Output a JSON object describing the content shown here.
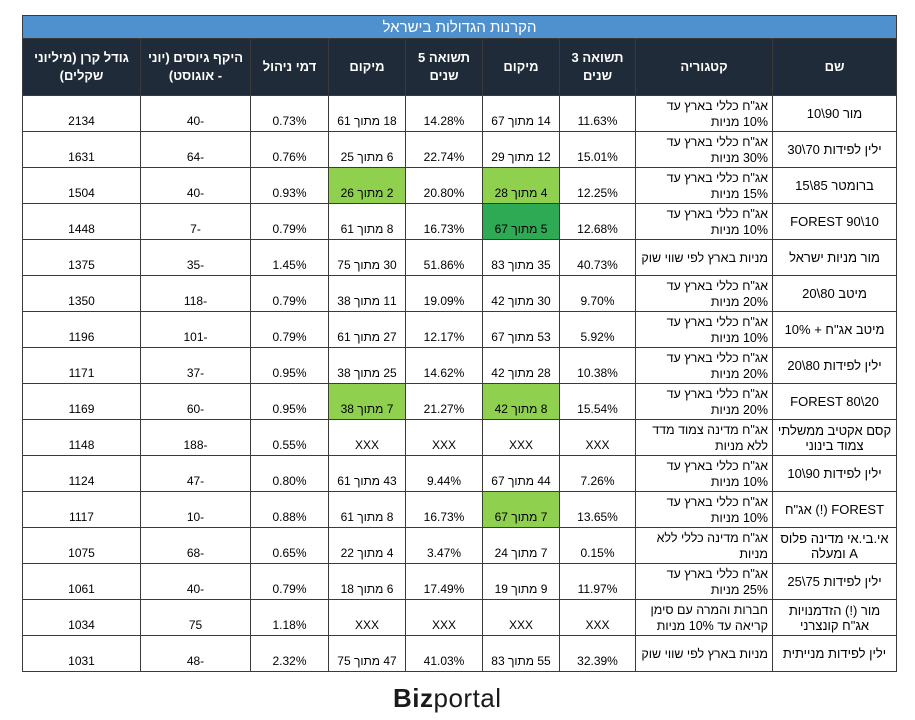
{
  "table": {
    "title": "הקרנות הגדולות בישראל",
    "headers": [
      "שם",
      "קטגוריה",
      "תשואה 3 שנים",
      "מיקום",
      "תשואה 5 שנים",
      "מיקום",
      "דמי ניהול",
      "היקף גיוסים (יוני - אוגוסט)",
      "גודל קרן (מיליוני שקלים)"
    ],
    "rows": [
      {
        "name": "מור 90\\10",
        "cat": "אג\"ח כללי בארץ עד 10% מניות",
        "r3": "11.63%",
        "rank3": "14 מתוך 67",
        "r5": "14.28%",
        "rank5": "18 מתוך 61",
        "fee": "0.73%",
        "flow": "-40",
        "size": "2134"
      },
      {
        "name": "ילין לפידות 70\\30",
        "cat": "אג\"ח כללי בארץ עד 30% מניות",
        "r3": "15.01%",
        "rank3": "12 מתוך 29",
        "r5": "22.74%",
        "rank5": "6 מתוך 25",
        "fee": "0.76%",
        "flow": "-64",
        "size": "1631"
      },
      {
        "name": "ברומטר 85\\15",
        "cat": "אג\"ח כללי בארץ עד 15% מניות",
        "r3": "12.25%",
        "rank3": "4 מתוך 28",
        "r5": "20.80%",
        "rank5": "2 מתוך 26",
        "fee": "0.93%",
        "flow": "-40",
        "size": "1504"
      },
      {
        "name": "FOREST 90\\10",
        "cat": "אג\"ח כללי בארץ עד 10% מניות",
        "r3": "12.68%",
        "rank3": "5 מתוך 67",
        "r5": "16.73%",
        "rank5": "8 מתוך 61",
        "fee": "0.79%",
        "flow": "-7",
        "size": "1448"
      },
      {
        "name": "מור מניות ישראל",
        "cat": "מניות בארץ לפי שווי שוק",
        "r3": "40.73%",
        "rank3": "35 מתוך 83",
        "r5": "51.86%",
        "rank5": "30 מתוך 75",
        "fee": "1.45%",
        "flow": "-35",
        "size": "1375"
      },
      {
        "name": "מיטב 80\\20",
        "cat": "אג\"ח כללי בארץ עד 20% מניות",
        "r3": "9.70%",
        "rank3": "30 מתוך 42",
        "r5": "19.09%",
        "rank5": "11 מתוך 38",
        "fee": "0.79%",
        "flow": "-118",
        "size": "1350"
      },
      {
        "name": "מיטב אג\"ח + 10%",
        "cat": "אג\"ח כללי  בארץ עד 10% מניות",
        "r3": "5.92%",
        "rank3": "53 מתוך 67",
        "r5": "12.17%",
        "rank5": "27 מתוך 61",
        "fee": "0.79%",
        "flow": "-101",
        "size": "1196"
      },
      {
        "name": "ילין לפידות 80\\20",
        "cat": "אג\"ח כללי בארץ עד 20% מניות",
        "r3": "10.38%",
        "rank3": "28 מתוך 42",
        "r5": "14.62%",
        "rank5": "25 מתוך 38",
        "fee": "0.95%",
        "flow": "-37",
        "size": "1171"
      },
      {
        "name": "FOREST 80\\20",
        "cat": "אג\"ח כללי בארץ עד 20% מניות",
        "r3": "15.54%",
        "rank3": "8 מתוך 42",
        "r5": "21.27%",
        "rank5": "7 מתוך 38",
        "fee": "0.95%",
        "flow": "-60",
        "size": "1169"
      },
      {
        "name": "קסם אקטיב ממשלתי צמוד בינוני",
        "cat": "אג\"ח מדינה צמוד מדד ללא מניות",
        "r3": "XXX",
        "rank3": "XXX",
        "r5": "XXX",
        "rank5": "XXX",
        "fee": "0.55%",
        "flow": "-188",
        "size": "1148"
      },
      {
        "name": "ילין לפידות 90\\10",
        "cat": "אג\"ח כללי בארץ עד 10% מניות",
        "r3": "7.26%",
        "rank3": "44 מתוך 67",
        "r5": "9.44%",
        "rank5": "43 מתוך 61",
        "fee": "0.80%",
        "flow": "-47",
        "size": "1124"
      },
      {
        "name": "FOREST (!) אג\"ח",
        "cat": "אג\"ח כללי בארץ עד 10% מניות",
        "r3": "13.65%",
        "rank3": "7 מתוך 67",
        "r5": "16.73%",
        "rank5": "8 מתוך 61",
        "fee": "0.88%",
        "flow": "-10",
        "size": "1117"
      },
      {
        "name": "אי.בי.אי מדינה פלוס A ומעלה",
        "cat": "אג\"ח מדינה כללי ללא מניות",
        "r3": "0.15%",
        "rank3": "7 מתוך 24",
        "r5": "3.47%",
        "rank5": "4 מתוך 22",
        "fee": "0.65%",
        "flow": "-68",
        "size": "1075"
      },
      {
        "name": "ילין לפידות 75\\25",
        "cat": "אג\"ח כללי בארץ עד 25% מניות",
        "r3": "11.97%",
        "rank3": "9 מתוך 19",
        "r5": "17.49%",
        "rank5": "6 מתוך 18",
        "fee": "0.79%",
        "flow": "-40",
        "size": "1061"
      },
      {
        "name": "מור (!) הזדמנויות אג\"ח קונצרני",
        "cat": "חברות והמרה עם סימן קריאה עד 10% מניות",
        "r3": "XXX",
        "rank3": "XXX",
        "r5": "XXX",
        "rank5": "XXX",
        "fee": "1.18%",
        "flow": "75",
        "size": "1034"
      },
      {
        "name": "ילין לפידות מנייתית",
        "cat": "מניות בארץ לפי שווי שוק",
        "r3": "32.39%",
        "rank3": "55 מתוך 83",
        "r5": "41.03%",
        "rank5": "47 מתוך 75",
        "fee": "2.32%",
        "flow": "-48",
        "size": "1031"
      }
    ],
    "highlights": {
      "rank5_light_green_rows": [
        2,
        8
      ],
      "rank3_light_green_rows": [
        2,
        8,
        11
      ],
      "rank3_dark_green_rows": [
        3
      ],
      "light_green": "#8fd14f",
      "dark_green": "#2eaa54"
    },
    "title_bar_color": "#4f90cf",
    "header_color": "#1f2b38"
  },
  "logo": {
    "bold": "Biz",
    "rest": "portal"
  }
}
